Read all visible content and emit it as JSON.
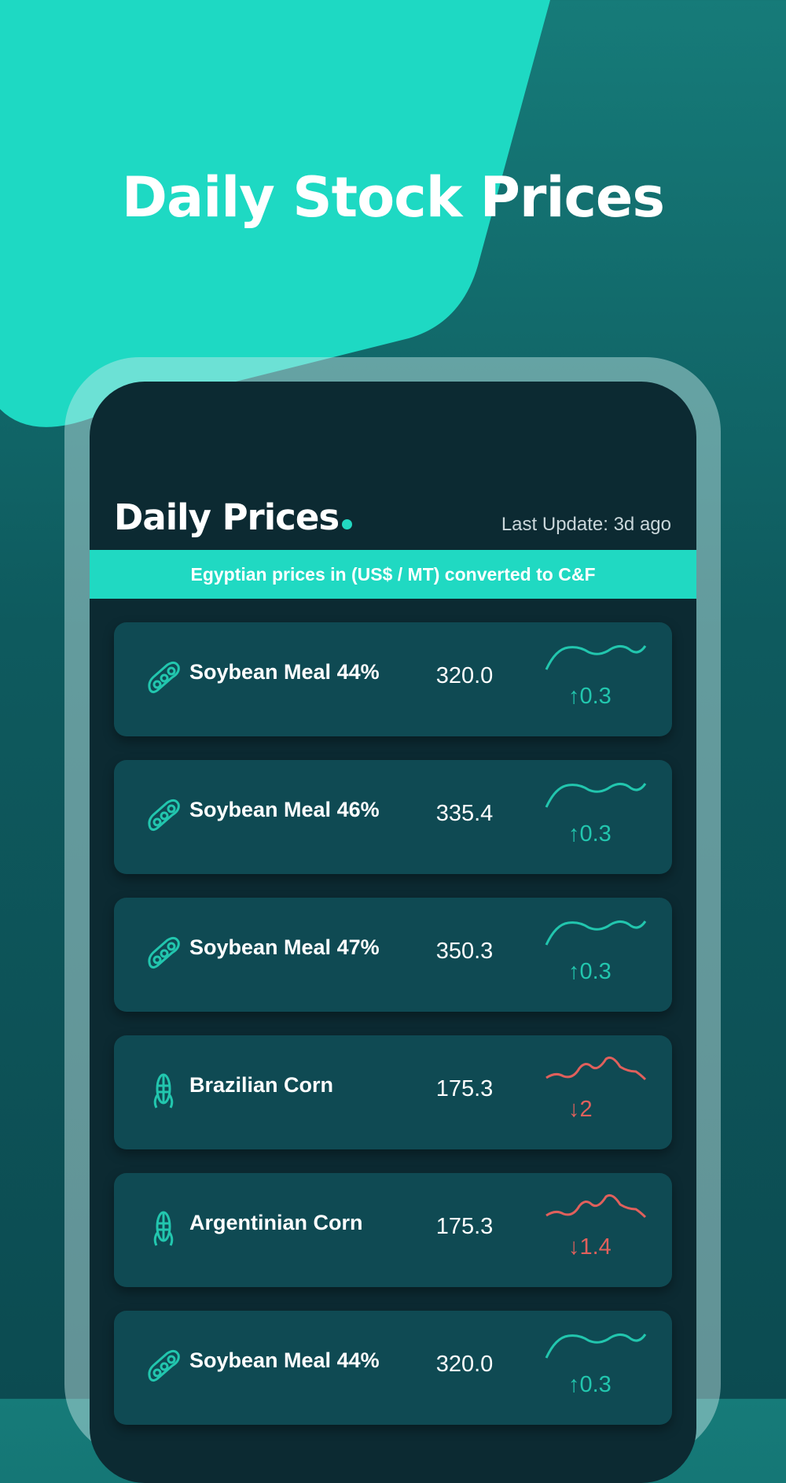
{
  "colors": {
    "accent": "#20d9c2",
    "up": "#22c6ae",
    "down": "#e0605c",
    "screen_bg": "#0c2a32",
    "card_bg": "#0f4a53"
  },
  "headline": "Daily Stock Prices",
  "screen": {
    "title": "Daily Prices",
    "last_update": "Last Update: 3d ago",
    "banner": "Egyptian prices in (US$ / MT) converted to C&F"
  },
  "items": [
    {
      "icon": "soybean-icon",
      "name": "Soybean Meal 44%",
      "price": "320.0",
      "change": "↑0.3",
      "trend": "up"
    },
    {
      "icon": "soybean-icon",
      "name": "Soybean Meal 46%",
      "price": "335.4",
      "change": "↑0.3",
      "trend": "up"
    },
    {
      "icon": "soybean-icon",
      "name": "Soybean Meal 47%",
      "price": "350.3",
      "change": "↑0.3",
      "trend": "up"
    },
    {
      "icon": "corn-icon",
      "name": "Brazilian Corn",
      "price": "175.3",
      "change": "↓2",
      "trend": "down"
    },
    {
      "icon": "corn-icon",
      "name": "Argentinian Corn",
      "price": "175.3",
      "change": "↓1.4",
      "trend": "down"
    },
    {
      "icon": "soybean-icon",
      "name": "Soybean Meal 44%",
      "price": "320.0",
      "change": "↑0.3",
      "trend": "up"
    }
  ]
}
